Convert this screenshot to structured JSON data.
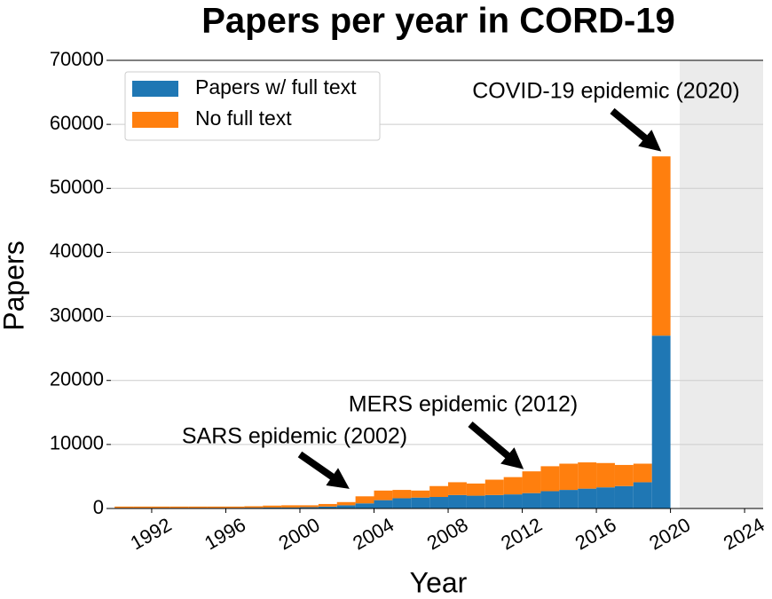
{
  "chart_data": {
    "type": "bar",
    "stacked": true,
    "title": "Papers per year in CORD-19",
    "x_label": "Year",
    "y_label": "Papers",
    "x": [
      1990,
      1991,
      1992,
      1993,
      1994,
      1995,
      1996,
      1997,
      1998,
      1999,
      2000,
      2001,
      2002,
      2003,
      2004,
      2005,
      2006,
      2007,
      2008,
      2009,
      2010,
      2011,
      2012,
      2013,
      2014,
      2015,
      2016,
      2017,
      2018,
      2019
    ],
    "series": [
      {
        "name": "Papers w/ full text",
        "color": "#1f77b4",
        "values": [
          100,
          100,
          100,
          100,
          100,
          100,
          100,
          120,
          150,
          150,
          200,
          300,
          500,
          800,
          1300,
          1600,
          1700,
          1800,
          2100,
          2000,
          2100,
          2200,
          2400,
          2700,
          2900,
          3100,
          3300,
          3500,
          4100,
          27000
        ]
      },
      {
        "name": "No full text",
        "color": "#ff7f0e",
        "values": [
          200,
          200,
          200,
          200,
          200,
          200,
          200,
          230,
          300,
          350,
          300,
          400,
          500,
          1100,
          1500,
          1300,
          1100,
          1700,
          2000,
          1900,
          2400,
          2700,
          3400,
          3900,
          4100,
          4100,
          3800,
          3300,
          2900,
          28000
        ]
      }
    ],
    "xlim": [
      1989.8,
      2025
    ],
    "xticks": [
      1992,
      1996,
      2000,
      2004,
      2008,
      2012,
      2016,
      2020,
      2024
    ],
    "ylim": [
      0,
      70000
    ],
    "yticks": [
      0,
      10000,
      20000,
      30000,
      40000,
      50000,
      60000,
      70000
    ],
    "grid": true,
    "legend": "upper left",
    "shaded_xrange": [
      2020.5,
      2025
    ],
    "shade_color": "#ebebeb",
    "annotations": [
      "SARS epidemic (2002)",
      "MERS epidemic (2012)",
      "COVID-19 epidemic (2020)"
    ]
  }
}
